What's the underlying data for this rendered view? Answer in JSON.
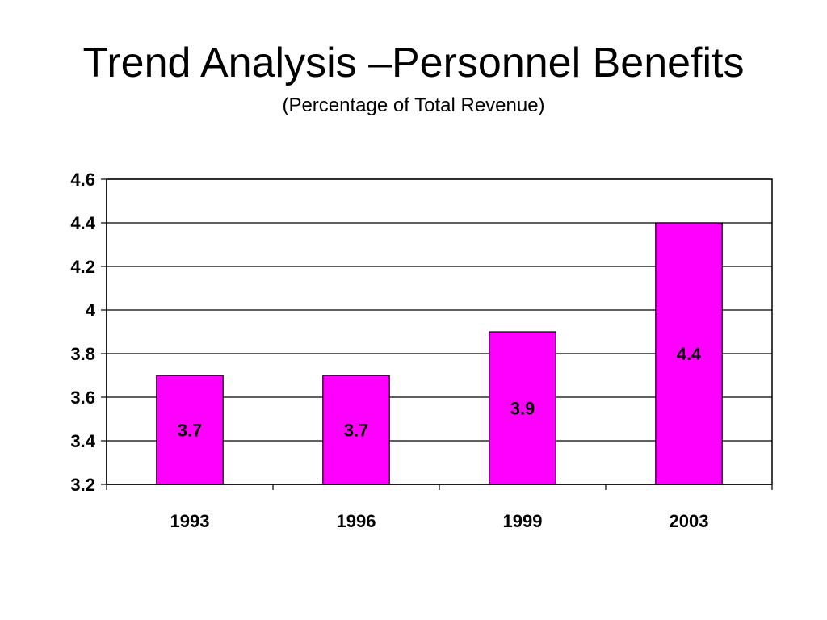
{
  "slide": {
    "title": "Trend Analysis –Personnel Benefits",
    "subtitle": "(Percentage of Total Revenue)"
  },
  "chart_data": {
    "type": "bar",
    "categories": [
      "1993",
      "1996",
      "1999",
      "2003"
    ],
    "values": [
      3.7,
      3.7,
      3.9,
      4.4
    ],
    "data_labels": [
      "3.7",
      "3.7",
      "3.9",
      "4.4"
    ],
    "y_ticks": [
      "3.2",
      "3.4",
      "3.6",
      "3.8",
      "4",
      "4.2",
      "4.4",
      "4.6"
    ],
    "ylim": [
      3.2,
      4.6
    ],
    "grid": true,
    "legend": "none",
    "bar_color": "#FF00FF",
    "xlabel": "",
    "ylabel": ""
  }
}
